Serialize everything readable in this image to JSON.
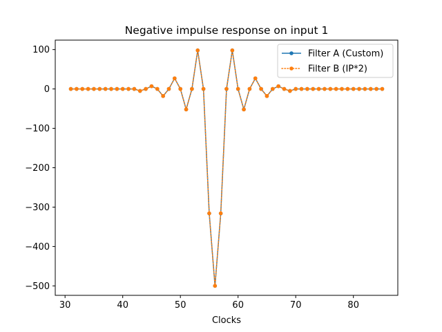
{
  "chart_data": {
    "type": "line",
    "title": "Negative impulse response on input 1",
    "xlabel": "Clocks",
    "ylabel": "",
    "xlim": [
      28.3,
      87.7
    ],
    "ylim": [
      -524,
      124
    ],
    "xticks": [
      30,
      40,
      50,
      60,
      70,
      80
    ],
    "yticks": [
      100,
      0,
      -100,
      -200,
      -300,
      -400,
      -500
    ],
    "grid": false,
    "legend_position": "top-right",
    "x": [
      31,
      32,
      33,
      34,
      35,
      36,
      37,
      38,
      39,
      40,
      41,
      42,
      43,
      44,
      45,
      46,
      47,
      48,
      49,
      50,
      51,
      52,
      53,
      54,
      55,
      56,
      57,
      58,
      59,
      60,
      61,
      62,
      63,
      64,
      65,
      66,
      67,
      68,
      69,
      70,
      71,
      72,
      73,
      74,
      75,
      76,
      77,
      78,
      79,
      80,
      81,
      82,
      83,
      84,
      85
    ],
    "series": [
      {
        "name": "Filter A (Custom)",
        "color": "#1f77b4",
        "style": "solid",
        "marker": "circle",
        "values": [
          0,
          0,
          0,
          0,
          0,
          0,
          0,
          0,
          0,
          0,
          0,
          0,
          -5,
          0,
          7,
          0,
          -18,
          0,
          27,
          0,
          -52,
          0,
          98,
          0,
          -316,
          -500,
          -316,
          0,
          98,
          0,
          -52,
          0,
          27,
          0,
          -18,
          0,
          7,
          0,
          -5,
          0,
          0,
          0,
          0,
          0,
          0,
          0,
          0,
          0,
          0,
          0,
          0,
          0,
          0,
          0,
          0
        ]
      },
      {
        "name": "Filter B (IP*2)",
        "color": "#ff7f0e",
        "style": "dotted",
        "marker": "circle",
        "values": [
          0,
          0,
          0,
          0,
          0,
          0,
          0,
          0,
          0,
          0,
          0,
          0,
          -5,
          0,
          7,
          0,
          -18,
          0,
          27,
          0,
          -52,
          0,
          98,
          0,
          -316,
          -500,
          -316,
          0,
          98,
          0,
          -52,
          0,
          27,
          0,
          -18,
          0,
          7,
          0,
          -5,
          0,
          0,
          0,
          0,
          0,
          0,
          0,
          0,
          0,
          0,
          0,
          0,
          0,
          0,
          0,
          0
        ]
      }
    ]
  }
}
